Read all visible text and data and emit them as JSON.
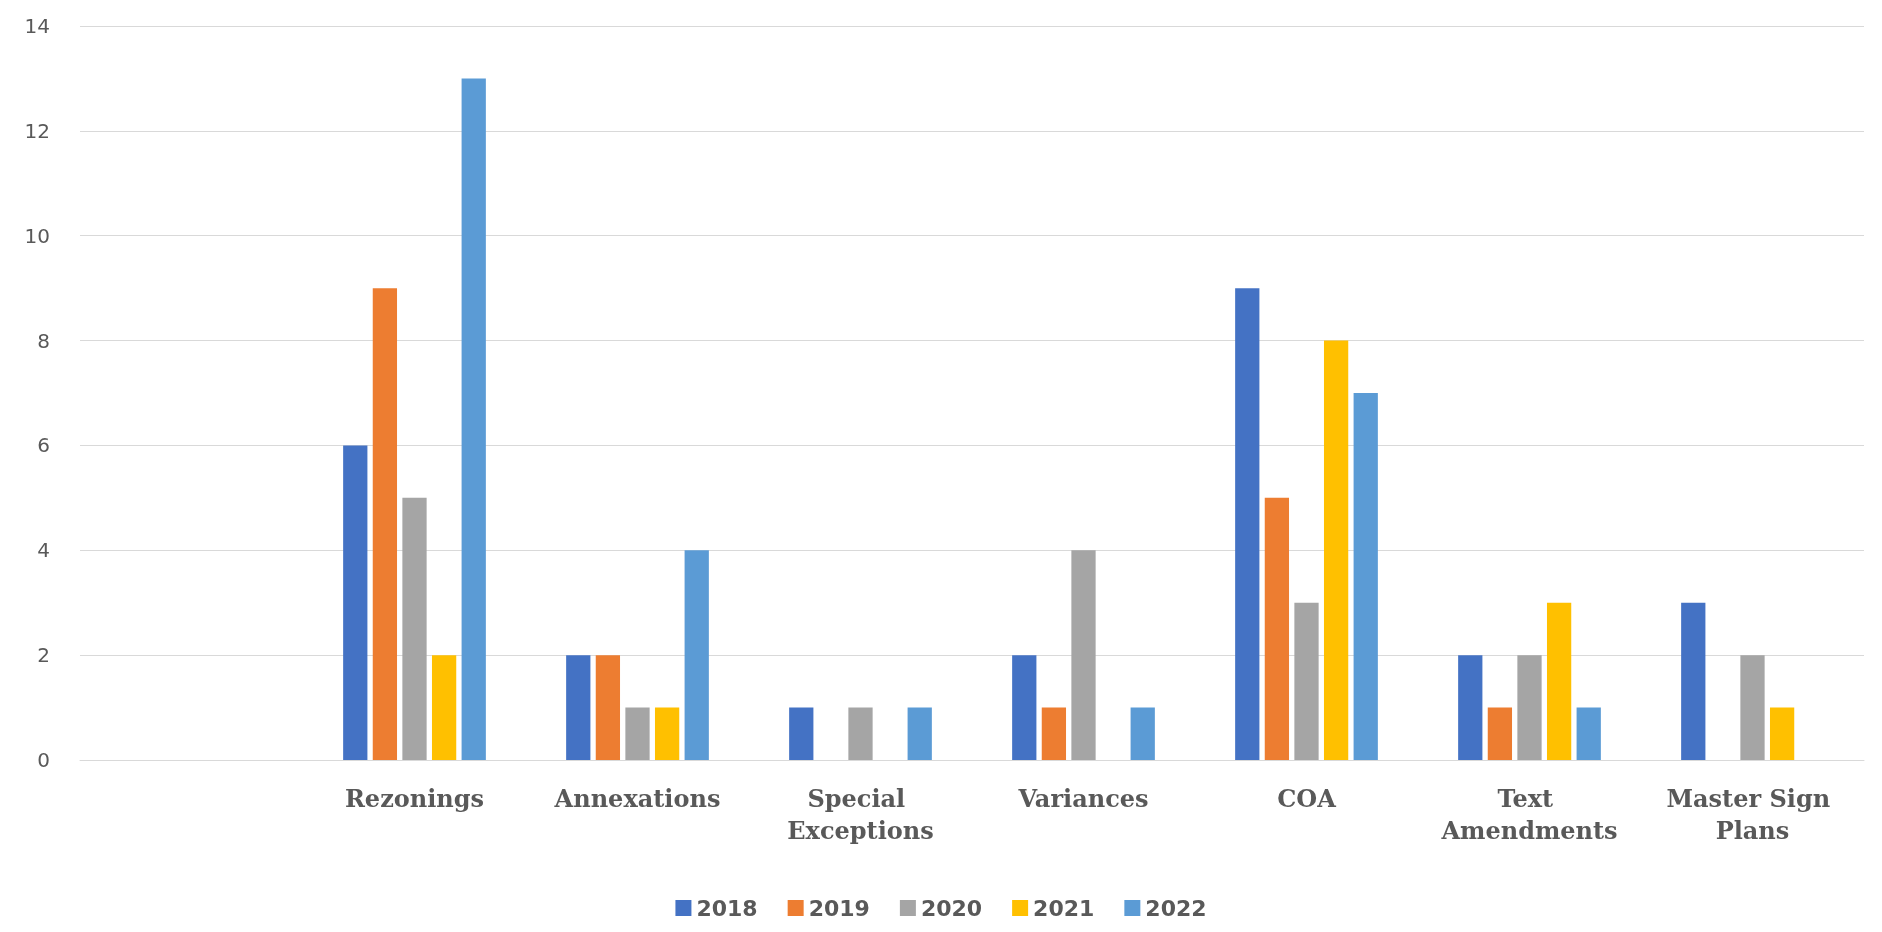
{
  "chart_data": {
    "type": "bar",
    "categories": [
      null,
      "Rezonings",
      "Annexations",
      "Special Exceptions",
      "Variances",
      "COA",
      "Text Amendments",
      "Master Sign Plans"
    ],
    "series": [
      {
        "name": "2018",
        "color": "#4472c4",
        "values": [
          null,
          6,
          2,
          1,
          2,
          9,
          2,
          3
        ]
      },
      {
        "name": "2019",
        "color": "#ed7d31",
        "values": [
          null,
          9,
          2,
          null,
          1,
          5,
          1,
          null
        ]
      },
      {
        "name": "2020",
        "color": "#a5a5a5",
        "values": [
          null,
          5,
          1,
          1,
          4,
          3,
          2,
          2
        ]
      },
      {
        "name": "2021",
        "color": "#ffc000",
        "values": [
          null,
          2,
          1,
          null,
          null,
          8,
          3,
          1
        ]
      },
      {
        "name": "2022",
        "color": "#5b9bd5",
        "values": [
          null,
          13,
          4,
          1,
          1,
          7,
          1,
          null
        ]
      }
    ],
    "ylim": [
      0,
      14
    ],
    "yticks": [
      0,
      2,
      4,
      6,
      8,
      10,
      12,
      14
    ],
    "grid": "y",
    "legend": "bottom"
  }
}
